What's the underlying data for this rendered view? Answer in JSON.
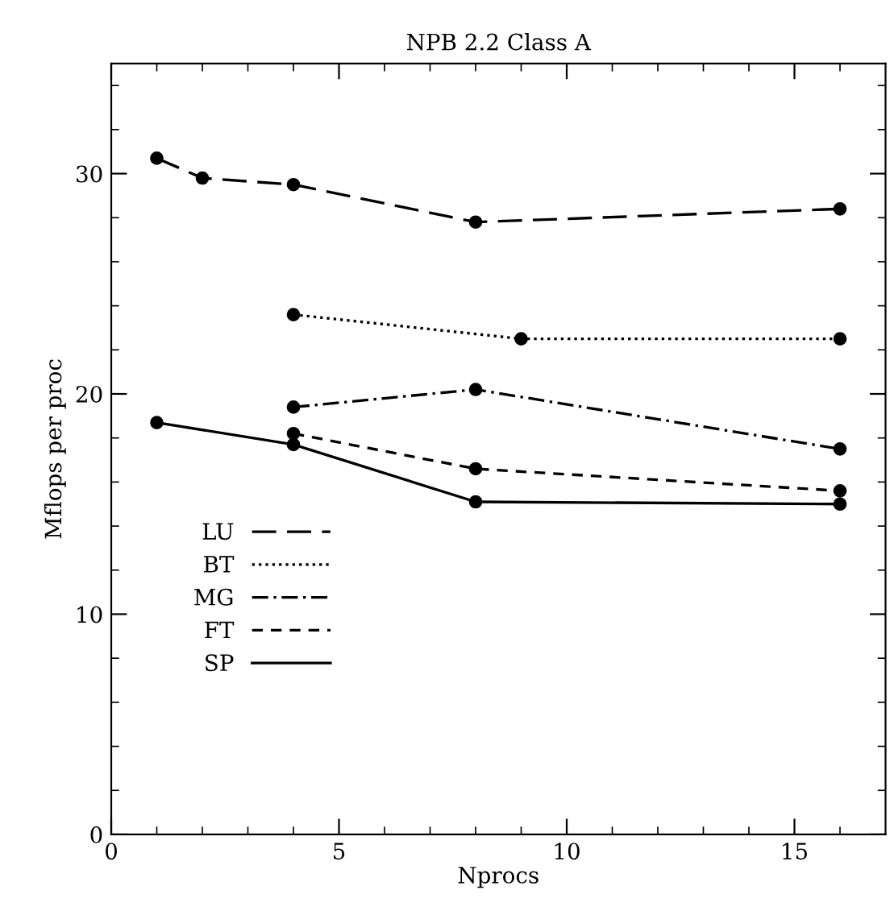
{
  "chart_data": {
    "type": "line",
    "title": "NPB 2.2 Class A",
    "xlabel": "Nprocs",
    "ylabel": "Mflops per proc",
    "xlim": [
      0,
      17
    ],
    "ylim": [
      0,
      35
    ],
    "xticks": [
      0,
      {
        "value": 1,
        "label": null
      },
      {
        "value": 2,
        "label": null
      },
      {
        "value": 3,
        "label": null
      },
      {
        "value": 4,
        "label": null
      },
      5,
      {
        "value": 6,
        "label": null
      },
      {
        "value": 7,
        "label": null
      },
      {
        "value": 8,
        "label": null
      },
      {
        "value": 9,
        "label": null
      },
      10,
      {
        "value": 11,
        "label": null
      },
      {
        "value": 12,
        "label": null
      },
      {
        "value": 13,
        "label": null
      },
      {
        "value": 14,
        "label": null
      },
      15,
      {
        "value": 16,
        "label": null
      }
    ],
    "yticks": [
      0,
      {
        "value": 2,
        "label": null
      },
      {
        "value": 4,
        "label": null
      },
      {
        "value": 6,
        "label": null
      },
      {
        "value": 8,
        "label": null
      },
      10,
      {
        "value": 12,
        "label": null
      },
      {
        "value": 14,
        "label": null
      },
      {
        "value": 16,
        "label": null
      },
      {
        "value": 18,
        "label": null
      },
      20,
      {
        "value": 22,
        "label": null
      },
      {
        "value": 24,
        "label": null
      },
      {
        "value": 26,
        "label": null
      },
      {
        "value": 28,
        "label": null
      },
      30,
      {
        "value": 32,
        "label": null
      },
      {
        "value": 34,
        "label": null
      }
    ],
    "marker": "circle",
    "grid": false,
    "legend": "bottom left",
    "series": [
      {
        "name": "LU",
        "color": "#000000",
        "line_style": "longdash",
        "x": [
          1,
          2,
          4,
          8,
          16
        ],
        "values": [
          30.7,
          29.8,
          29.5,
          27.8,
          28.4
        ]
      },
      {
        "name": "BT",
        "color": "#000000",
        "line_style": "dotted",
        "x": [
          4,
          9,
          16
        ],
        "values": [
          23.6,
          22.5,
          22.5
        ]
      },
      {
        "name": "MG",
        "color": "#000000",
        "line_style": "dashdot",
        "x": [
          4,
          8,
          16
        ],
        "values": [
          19.4,
          20.2,
          17.5
        ]
      },
      {
        "name": "FT",
        "color": "#000000",
        "line_style": "dashed",
        "x": [
          4,
          8,
          16
        ],
        "values": [
          18.2,
          16.6,
          15.6
        ]
      },
      {
        "name": "SP",
        "color": "#000000",
        "line_style": "solid",
        "x": [
          1,
          4,
          8,
          16
        ],
        "values": [
          18.7,
          17.7,
          15.1,
          15.0
        ]
      }
    ]
  }
}
